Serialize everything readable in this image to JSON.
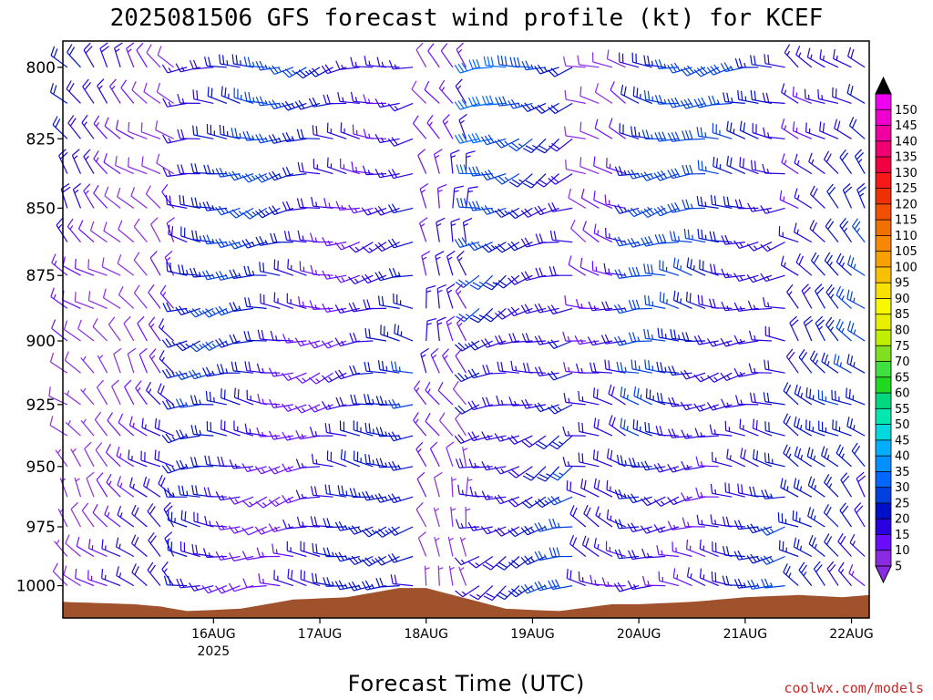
{
  "chart_data": {
    "type": "wind-barb-timeheight",
    "title": "2025081506 GFS forecast wind profile (kt) for KCEF",
    "xlabel": "Forecast Time (UTC)",
    "credit": "coolwx.com/models",
    "yaxis": {
      "label": "",
      "scale": "log-pressure",
      "inverted": true,
      "ylim": [
        1014,
        791
      ],
      "ticks": [
        800,
        825,
        850,
        875,
        900,
        925,
        950,
        975,
        1000
      ]
    },
    "xaxis": {
      "range_hours": [
        -16,
        166
      ],
      "ticks": [
        {
          "hour": 18,
          "label": "16AUG",
          "sublabel": "2025"
        },
        {
          "hour": 42,
          "label": "17AUG",
          "sublabel": ""
        },
        {
          "hour": 66,
          "label": "18AUG",
          "sublabel": ""
        },
        {
          "hour": 90,
          "label": "19AUG",
          "sublabel": ""
        },
        {
          "hour": 114,
          "label": "20AUG",
          "sublabel": ""
        },
        {
          "hour": 138,
          "label": "21AUG",
          "sublabel": ""
        },
        {
          "hour": 162,
          "label": "22AUG",
          "sublabel": ""
        }
      ]
    },
    "levels_hpa": [
      800,
      812.5,
      825,
      837.5,
      850,
      862.5,
      875,
      887.5,
      900,
      912.5,
      925,
      937.5,
      950,
      962.5,
      975,
      987.5,
      1000
    ],
    "wind_model": {
      "time_step_hours": 3,
      "phases": [
        {
          "from_hour": -15,
          "to_hour": 12,
          "dir_deg": 315,
          "speed_kt": 12
        },
        {
          "from_hour": 12,
          "to_hour": 66,
          "dir_deg": 265,
          "speed_kt": 18
        },
        {
          "from_hour": 66,
          "to_hour": 78,
          "dir_deg": 340,
          "speed_kt": 8
        },
        {
          "from_hour": 78,
          "to_hour": 100,
          "dir_deg": 250,
          "speed_kt": 22
        },
        {
          "from_hour": 100,
          "to_hour": 114,
          "dir_deg": 285,
          "speed_kt": 12
        },
        {
          "from_hour": 114,
          "to_hour": 150,
          "dir_deg": 270,
          "speed_kt": 20
        },
        {
          "from_hour": 150,
          "to_hour": 166,
          "dir_deg": 310,
          "speed_kt": 18
        }
      ]
    },
    "surface_pressure": [
      {
        "hour": -16,
        "hpa": 1007
      },
      {
        "hour": 0,
        "hpa": 1008
      },
      {
        "hour": 6,
        "hpa": 1009
      },
      {
        "hour": 12,
        "hpa": 1011
      },
      {
        "hour": 24,
        "hpa": 1010
      },
      {
        "hour": 36,
        "hpa": 1006
      },
      {
        "hour": 48,
        "hpa": 1005
      },
      {
        "hour": 60,
        "hpa": 1001
      },
      {
        "hour": 66,
        "hpa": 1001
      },
      {
        "hour": 72,
        "hpa": 1004
      },
      {
        "hour": 84,
        "hpa": 1010
      },
      {
        "hour": 96,
        "hpa": 1011
      },
      {
        "hour": 108,
        "hpa": 1008
      },
      {
        "hour": 114,
        "hpa": 1008
      },
      {
        "hour": 126,
        "hpa": 1007
      },
      {
        "hour": 138,
        "hpa": 1005
      },
      {
        "hour": 150,
        "hpa": 1004
      },
      {
        "hour": 160,
        "hpa": 1005
      },
      {
        "hour": 166,
        "hpa": 1004
      }
    ],
    "colorbar": {
      "values": [
        5,
        10,
        15,
        20,
        25,
        30,
        35,
        40,
        45,
        50,
        55,
        60,
        65,
        70,
        75,
        80,
        85,
        90,
        95,
        100,
        105,
        110,
        115,
        120,
        125,
        130,
        135,
        140,
        145,
        150
      ],
      "colors": [
        "#8a2be2",
        "#6a0dff",
        "#2a00e0",
        "#0010c8",
        "#0040e0",
        "#0068ff",
        "#0090ff",
        "#00b0ff",
        "#00d8e0",
        "#00e8b0",
        "#00d880",
        "#20d820",
        "#40e040",
        "#80e020",
        "#c0f000",
        "#e8f000",
        "#f8f800",
        "#f8e000",
        "#f8c000",
        "#f8a000",
        "#f88800",
        "#f07000",
        "#f05000",
        "#f03000",
        "#f81818",
        "#f00040",
        "#f00070",
        "#f000a0",
        "#f000d0",
        "#f000f0"
      ],
      "top_cap_color": "#000000",
      "bottom_cap_color": "#8a2be2"
    },
    "terrain_color": "#a0522d",
    "grid": false
  }
}
